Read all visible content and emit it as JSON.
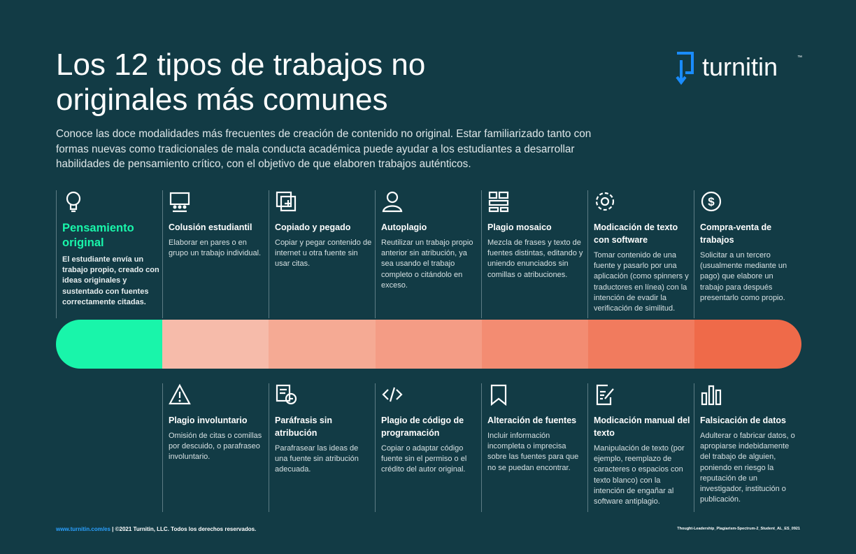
{
  "header": {
    "title_lines": [
      "Los 12 tipos de trabajos no",
      "originales más comunes"
    ],
    "intro": "Conoce las doce modalidades más frecuentes de creación de contenido no original. Estar familiarizado tanto con formas nuevas como tradicionales de mala conducta académica puede ayudar a los estudiantes a desarrollar habilidades de pensamiento crítico, con el objetivo de que elaboren trabajos auténticos.",
    "logo": "turnitin",
    "logo_mark": "™"
  },
  "top_items": [
    {
      "title": "Pensamiento original",
      "body": "El estudiante envía un trabajo propio, creado con ideas originales y sustentado con fuentes correctamente citadas."
    },
    {
      "title": "Colusión estudiantil",
      "body": "Elaborar en pares o en grupo un trabajo individual."
    },
    {
      "title": "Copiado y pegado",
      "body": "Copiar y pegar contenido de internet u otra fuente sin usar citas."
    },
    {
      "title": "Autoplagio",
      "body": "Reutilizar un trabajo propio anterior sin atribución, ya sea usando el trabajo completo o citándolo en exceso."
    },
    {
      "title": "Plagio mosaico",
      "body": "Mezcla de frases y texto de fuentes distintas, editando y uniendo enunciados sin comillas o atribuciones."
    },
    {
      "title": "Modicación de texto con software",
      "body": "Tomar contenido de una fuente y pasarlo por una aplicación (como spinners y traductores en línea) con la intención de evadir la verificación de similitud."
    },
    {
      "title": "Compra-venta de trabajos",
      "body": "Solicitar a un tercero (usualmente mediante un pago) que elabore un trabajo para después presentarlo como propio."
    }
  ],
  "bottom_items": [
    {
      "title": "Plagio involuntario",
      "body": "Omisión de citas o comillas por descuido, o parafraseo involuntario."
    },
    {
      "title": "Paráfrasis sin atribución",
      "body": "Parafrasear las ideas de una fuente sin atribución adecuada."
    },
    {
      "title": "Plagio de código de programación",
      "body": "Copiar o adaptar código fuente sin el permiso o el crédito del autor original."
    },
    {
      "title": "Alteración de fuentes",
      "body": "Incluir información incompleta o imprecisa sobre las fuentes para que no se puedan encontrar."
    },
    {
      "title": "Modicación manual del texto",
      "body": "Manipulación de texto (por ejemplo, reemplazo de caracteres o espacios con texto blanco) con la intención de engañar al software antiplagio."
    },
    {
      "title": "Falsicación de datos",
      "body": "Adulterar o fabricar datos, o apropiarse indebidamente del trabajo de alguien, poniendo en riesgo la reputación de un investigador, institución o publicación."
    }
  ],
  "footer": {
    "url": "www.turnitin.com/es",
    "copyright": " | ©2021 Turnitin, LLC. Todos los derechos reservados.",
    "code": "Thought-Leadership_Plagiarism-Spectrum-2_Student_AL_ES_0921"
  }
}
